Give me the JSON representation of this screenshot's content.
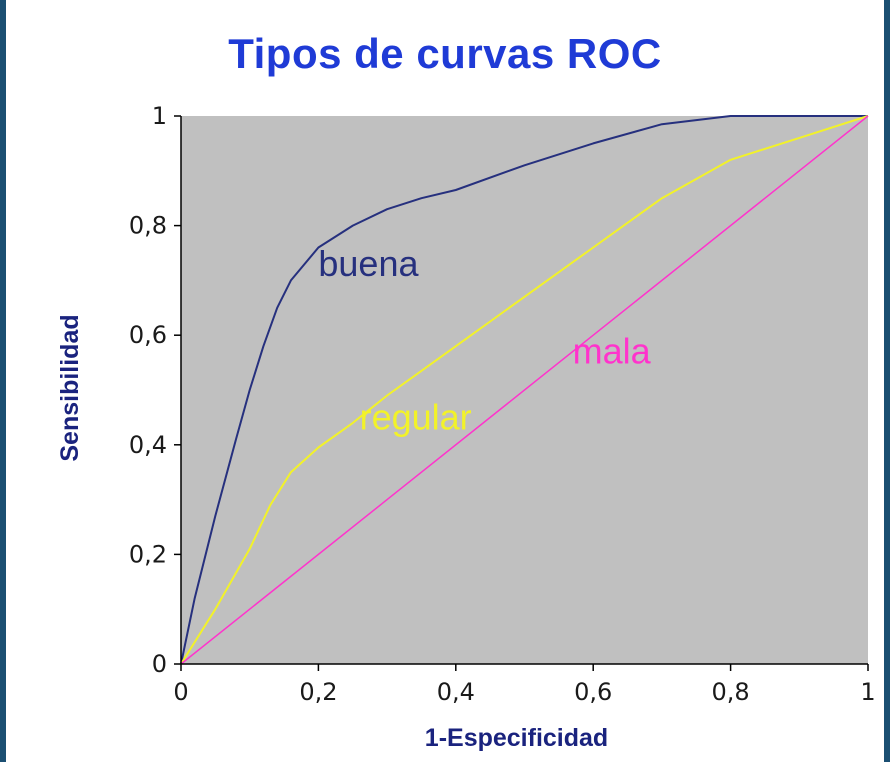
{
  "chart_data": {
    "type": "line",
    "title": "Tipos de curvas ROC",
    "xlabel": "1-Especificidad",
    "ylabel": "Sensibilidad",
    "xlim": [
      0,
      1
    ],
    "ylim": [
      0,
      1
    ],
    "x_ticks": [
      "0",
      "0,2",
      "0,4",
      "0,6",
      "0,8",
      "1"
    ],
    "y_ticks": [
      "0",
      "0,2",
      "0,4",
      "0,6",
      "0,8",
      "1"
    ],
    "plot_background": "#c0c0c0",
    "grid": false,
    "legend": "none",
    "series": [
      {
        "name": "buena",
        "color": "#26307e",
        "x": [
          0,
          0.02,
          0.05,
          0.08,
          0.1,
          0.12,
          0.14,
          0.16,
          0.2,
          0.25,
          0.3,
          0.35,
          0.4,
          0.5,
          0.6,
          0.7,
          0.8,
          0.9,
          1
        ],
        "y": [
          0,
          0.12,
          0.27,
          0.41,
          0.5,
          0.58,
          0.65,
          0.7,
          0.76,
          0.8,
          0.83,
          0.85,
          0.865,
          0.91,
          0.95,
          0.985,
          1,
          1,
          1
        ]
      },
      {
        "name": "regular",
        "color": "#f2f229",
        "x": [
          0,
          0.05,
          0.1,
          0.13,
          0.16,
          0.2,
          0.25,
          0.3,
          0.4,
          0.5,
          0.6,
          0.7,
          0.8,
          0.9,
          1
        ],
        "y": [
          0,
          0.1,
          0.21,
          0.29,
          0.35,
          0.395,
          0.44,
          0.49,
          0.58,
          0.67,
          0.76,
          0.85,
          0.92,
          0.96,
          1
        ]
      },
      {
        "name": "mala",
        "color": "#ff33cc",
        "x": [
          0,
          1
        ],
        "y": [
          0,
          1
        ]
      }
    ],
    "annotations": [
      {
        "text": "buena",
        "x": 0.2,
        "y": 0.73,
        "color": "#26307e"
      },
      {
        "text": "regular",
        "x": 0.26,
        "y": 0.45,
        "color": "#f2f229"
      },
      {
        "text": "mala",
        "x": 0.57,
        "y": 0.57,
        "color": "#ff33cc"
      }
    ]
  }
}
